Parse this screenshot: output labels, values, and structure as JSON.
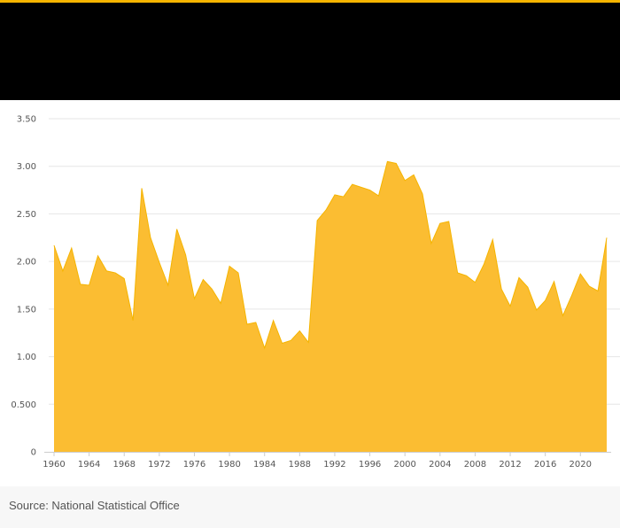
{
  "colors": {
    "accent": "#f5b400",
    "header": "#000000",
    "area_fill": "#fbbd32",
    "area_line": "#f5b400",
    "grid": "#e6e6e6",
    "axis": "#cccccc",
    "text": "#555555"
  },
  "source": "Source: National Statistical Office",
  "chart_data": {
    "type": "area",
    "title": "",
    "xlabel": "",
    "ylabel": "",
    "grid": true,
    "xlim": [
      1960,
      2023
    ],
    "ylim": [
      0,
      3.5
    ],
    "y_ticks": [
      {
        "value": 0,
        "label": "0"
      },
      {
        "value": 0.5,
        "label": "0.500"
      },
      {
        "value": 1.0,
        "label": "1.00"
      },
      {
        "value": 1.5,
        "label": "1.50"
      },
      {
        "value": 2.0,
        "label": "2.00"
      },
      {
        "value": 2.5,
        "label": "2.50"
      },
      {
        "value": 3.0,
        "label": "3.00"
      },
      {
        "value": 3.5,
        "label": "3.50"
      }
    ],
    "x_ticks": [
      {
        "value": 1960,
        "label": "1960"
      },
      {
        "value": 1964,
        "label": "1964"
      },
      {
        "value": 1968,
        "label": "1968"
      },
      {
        "value": 1972,
        "label": "1972"
      },
      {
        "value": 1976,
        "label": "1976"
      },
      {
        "value": 1980,
        "label": "1980"
      },
      {
        "value": 1984,
        "label": "1984"
      },
      {
        "value": 1988,
        "label": "1988"
      },
      {
        "value": 1992,
        "label": "1992"
      },
      {
        "value": 1996,
        "label": "1996"
      },
      {
        "value": 2000,
        "label": "2000"
      },
      {
        "value": 2004,
        "label": "2004"
      },
      {
        "value": 2008,
        "label": "2008"
      },
      {
        "value": 2012,
        "label": "2012"
      },
      {
        "value": 2016,
        "label": "2016"
      },
      {
        "value": 2020,
        "label": "2020"
      }
    ],
    "x": [
      1960,
      1961,
      1962,
      1963,
      1964,
      1965,
      1966,
      1967,
      1968,
      1969,
      1970,
      1971,
      1972,
      1973,
      1974,
      1975,
      1976,
      1977,
      1978,
      1979,
      1980,
      1981,
      1982,
      1983,
      1984,
      1985,
      1986,
      1987,
      1988,
      1989,
      1990,
      1991,
      1992,
      1993,
      1994,
      1995,
      1996,
      1997,
      1998,
      1999,
      2000,
      2001,
      2002,
      2003,
      2004,
      2005,
      2006,
      2007,
      2008,
      2009,
      2010,
      2011,
      2012,
      2013,
      2014,
      2015,
      2016,
      2017,
      2018,
      2019,
      2020,
      2021,
      2022,
      2023
    ],
    "series": [
      {
        "values": [
          2.17,
          1.9,
          2.14,
          1.76,
          1.75,
          2.06,
          1.9,
          1.88,
          1.82,
          1.38,
          2.77,
          2.25,
          1.99,
          1.75,
          2.34,
          2.07,
          1.61,
          1.81,
          1.71,
          1.56,
          1.95,
          1.88,
          1.34,
          1.36,
          1.09,
          1.38,
          1.14,
          1.17,
          1.27,
          1.15,
          2.43,
          2.54,
          2.7,
          2.68,
          2.81,
          2.78,
          2.75,
          2.69,
          3.05,
          3.03,
          2.85,
          2.91,
          2.71,
          2.19,
          2.4,
          2.42,
          1.88,
          1.85,
          1.78,
          1.97,
          2.23,
          1.71,
          1.53,
          1.83,
          1.73,
          1.49,
          1.59,
          1.79,
          1.43,
          1.64,
          1.87,
          1.74,
          1.69,
          2.25
        ]
      }
    ]
  }
}
